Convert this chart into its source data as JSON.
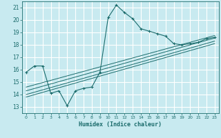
{
  "title": "",
  "xlabel": "Humidex (Indice chaleur)",
  "bg_color": "#c8eaf0",
  "grid_color": "#ffffff",
  "line_color": "#1a6b6b",
  "xlim": [
    -0.5,
    23.5
  ],
  "ylim": [
    12.5,
    21.5
  ],
  "xticks": [
    0,
    1,
    2,
    3,
    4,
    5,
    6,
    7,
    8,
    9,
    10,
    11,
    12,
    13,
    14,
    15,
    16,
    17,
    18,
    19,
    20,
    21,
    22,
    23
  ],
  "yticks": [
    13,
    14,
    15,
    16,
    17,
    18,
    19,
    20,
    21
  ],
  "curve_x": [
    0,
    1,
    2,
    3,
    4,
    5,
    6,
    7,
    8,
    9,
    10,
    11,
    12,
    13,
    14,
    15,
    16,
    17,
    18,
    19,
    20,
    21,
    22,
    23
  ],
  "curve_y": [
    15.8,
    16.3,
    16.3,
    14.1,
    14.3,
    13.1,
    14.3,
    14.5,
    14.6,
    15.8,
    20.2,
    21.2,
    20.6,
    20.1,
    19.3,
    19.1,
    18.9,
    18.7,
    18.1,
    18.0,
    18.1,
    18.2,
    18.5,
    18.6
  ],
  "line1_x": [
    0,
    23
  ],
  "line1_y": [
    13.8,
    18.1
  ],
  "line2_x": [
    0,
    23
  ],
  "line2_y": [
    14.0,
    18.3
  ],
  "line3_x": [
    0,
    23
  ],
  "line3_y": [
    14.3,
    18.55
  ],
  "line4_x": [
    0,
    23
  ],
  "line4_y": [
    14.6,
    18.75
  ]
}
